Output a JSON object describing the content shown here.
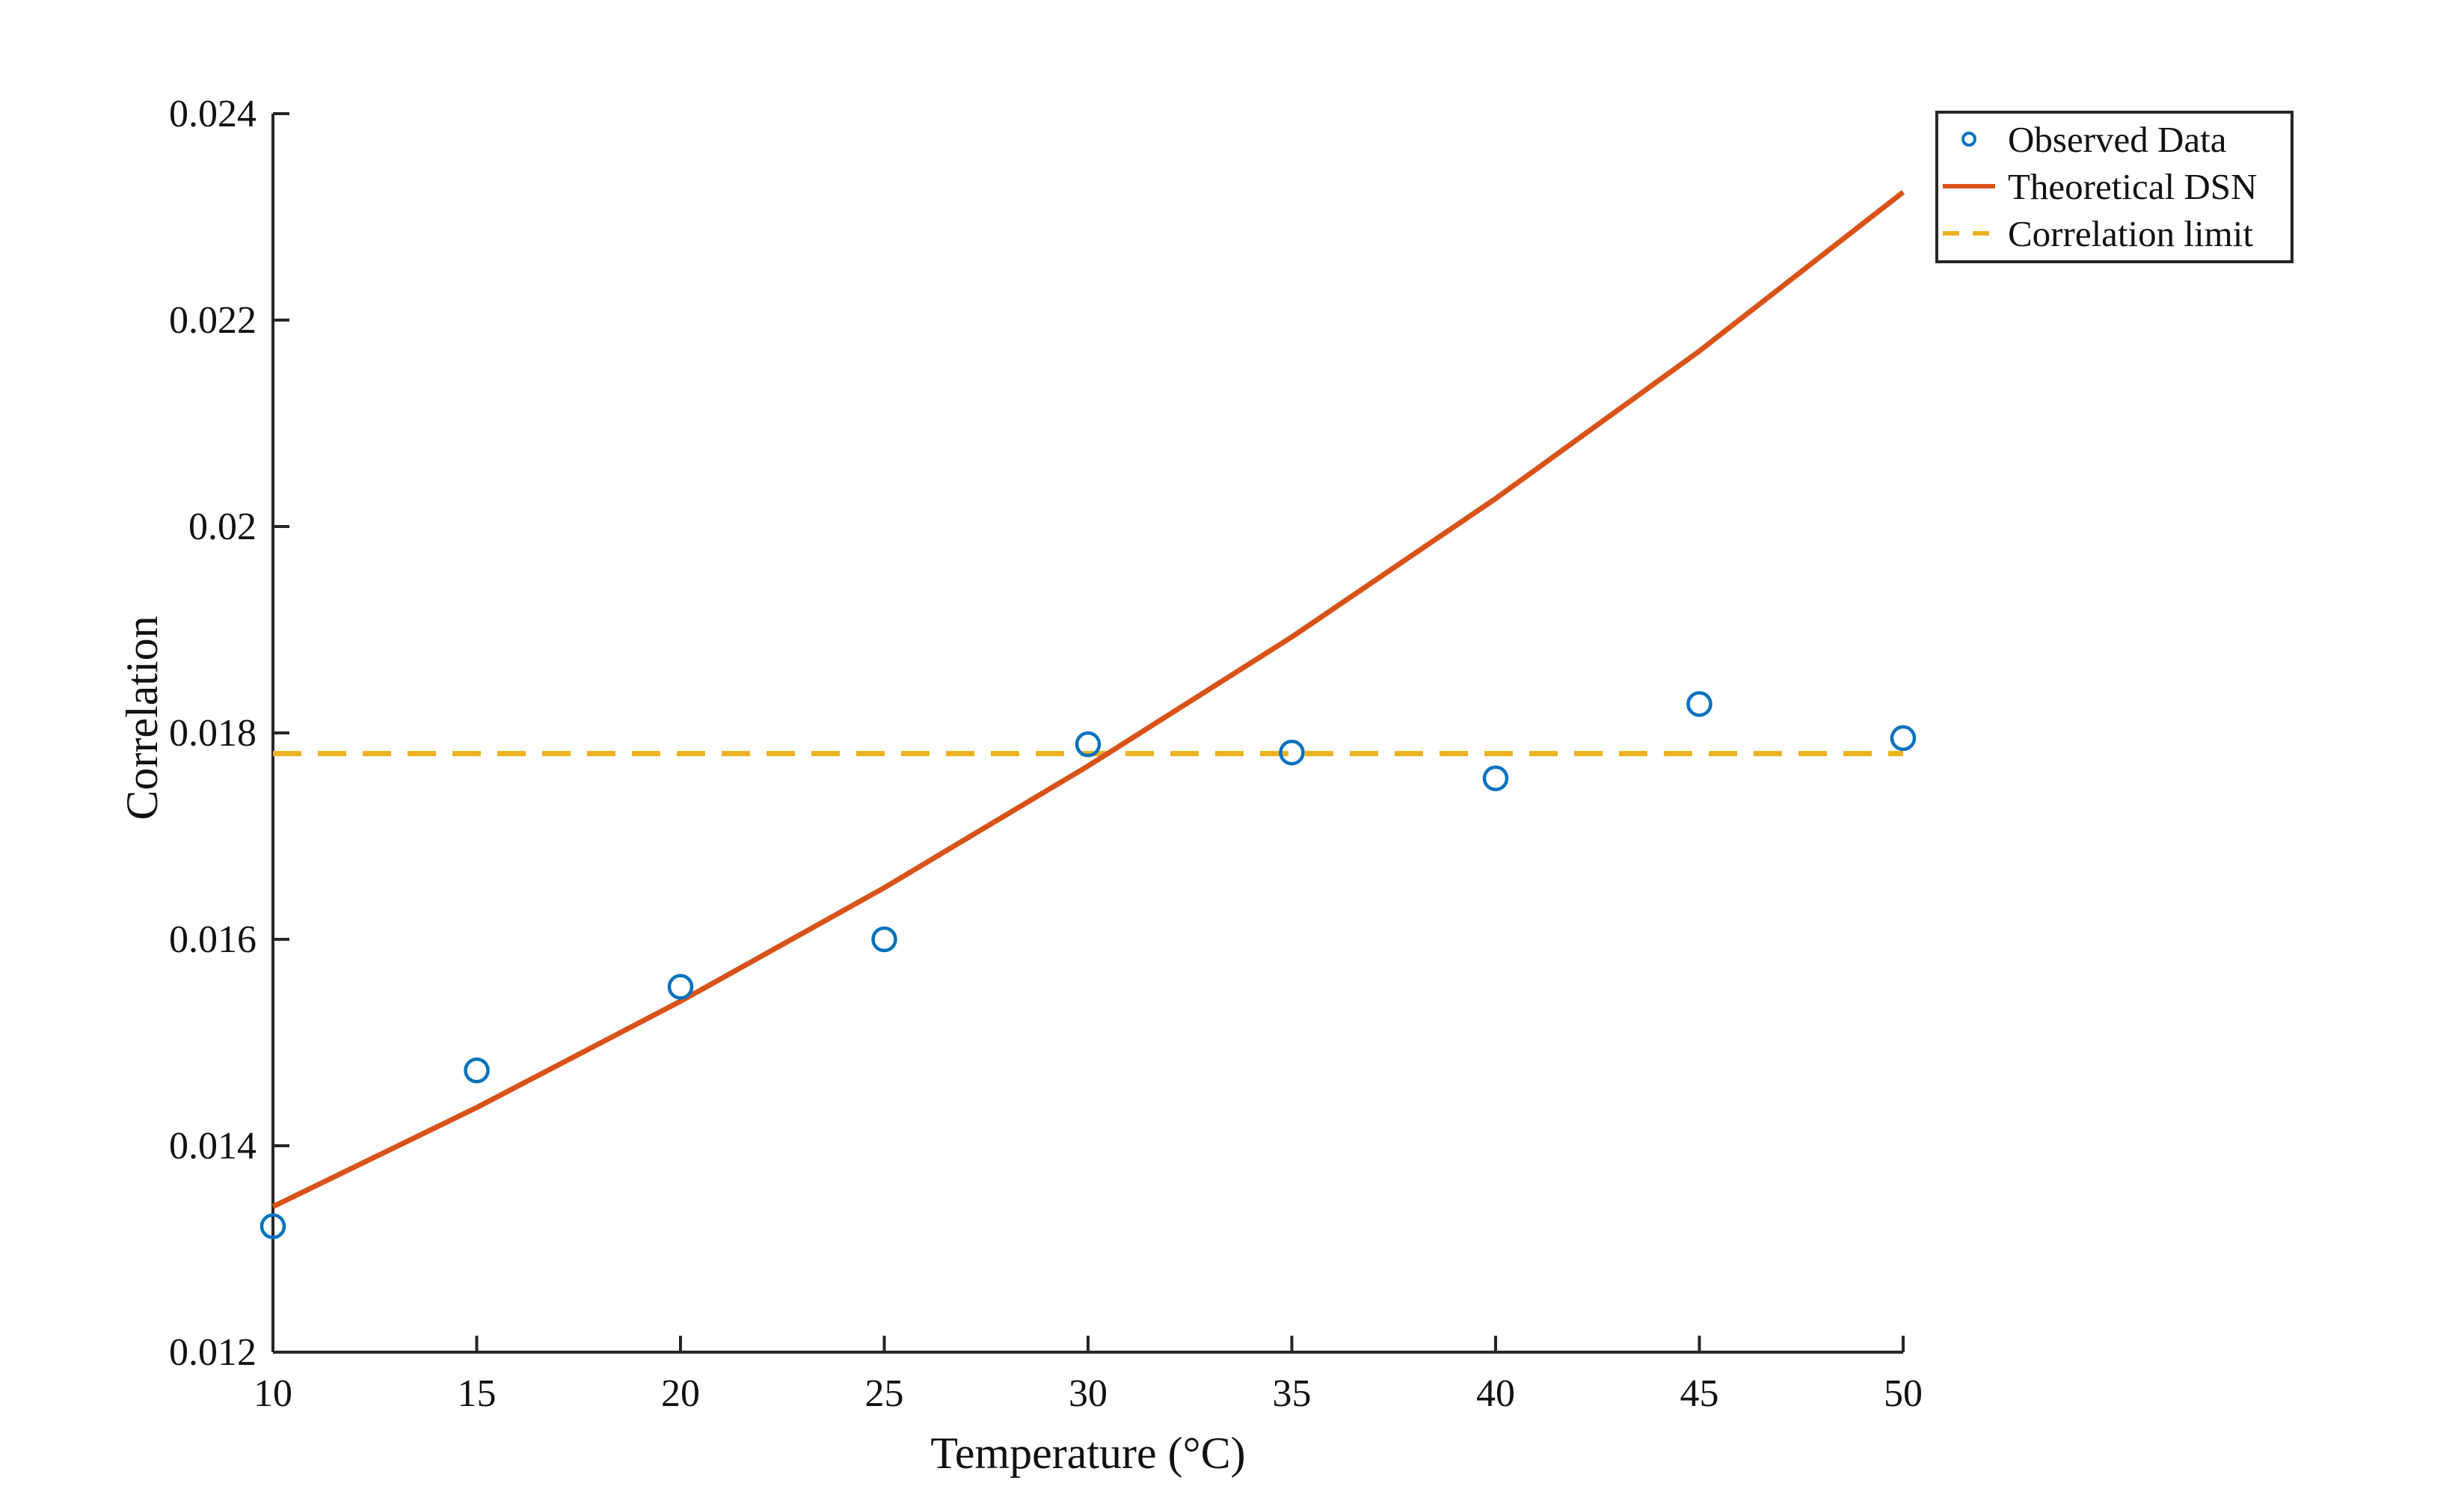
{
  "chart_data": {
    "type": "line",
    "title": "",
    "xlabel": "Temperature (°C)",
    "ylabel": "Correlation",
    "xlim": [
      10,
      50
    ],
    "ylim": [
      0.012,
      0.024
    ],
    "x_ticks": [
      10,
      15,
      20,
      25,
      30,
      35,
      40,
      45,
      50
    ],
    "x_tick_labels": [
      "10",
      "15",
      "20",
      "25",
      "30",
      "35",
      "40",
      "45",
      "50"
    ],
    "y_ticks": [
      0.012,
      0.014,
      0.016,
      0.018,
      0.02,
      0.022,
      0.024
    ],
    "y_tick_labels": [
      "0.012",
      "0.014",
      "0.016",
      "0.018",
      "0.02",
      "0.022",
      "0.024"
    ],
    "grid": false,
    "legend_position": "top-right",
    "series": [
      {
        "name": "Observed Data",
        "kind": "scatter",
        "marker": "circle",
        "color": "#0072BD",
        "x": [
          10,
          15,
          20,
          25,
          30,
          35,
          40,
          45,
          50
        ],
        "y": [
          0.01322,
          0.01473,
          0.01554,
          0.016,
          0.01789,
          0.01781,
          0.01756,
          0.01828,
          0.01795
        ]
      },
      {
        "name": "Theoretical DSN",
        "kind": "line",
        "style": "solid",
        "color": "#D95319",
        "x": [
          10,
          15,
          20,
          25,
          30,
          35,
          40,
          45,
          50
        ],
        "y": [
          0.01341,
          0.01437,
          0.0154,
          0.0165,
          0.01768,
          0.01893,
          0.02027,
          0.0217,
          0.02324
        ]
      },
      {
        "name": "Correlation limit",
        "kind": "line",
        "style": "dashed",
        "color": "#EDB120",
        "x": [
          10,
          50
        ],
        "y": [
          0.0178,
          0.0178
        ]
      }
    ]
  }
}
